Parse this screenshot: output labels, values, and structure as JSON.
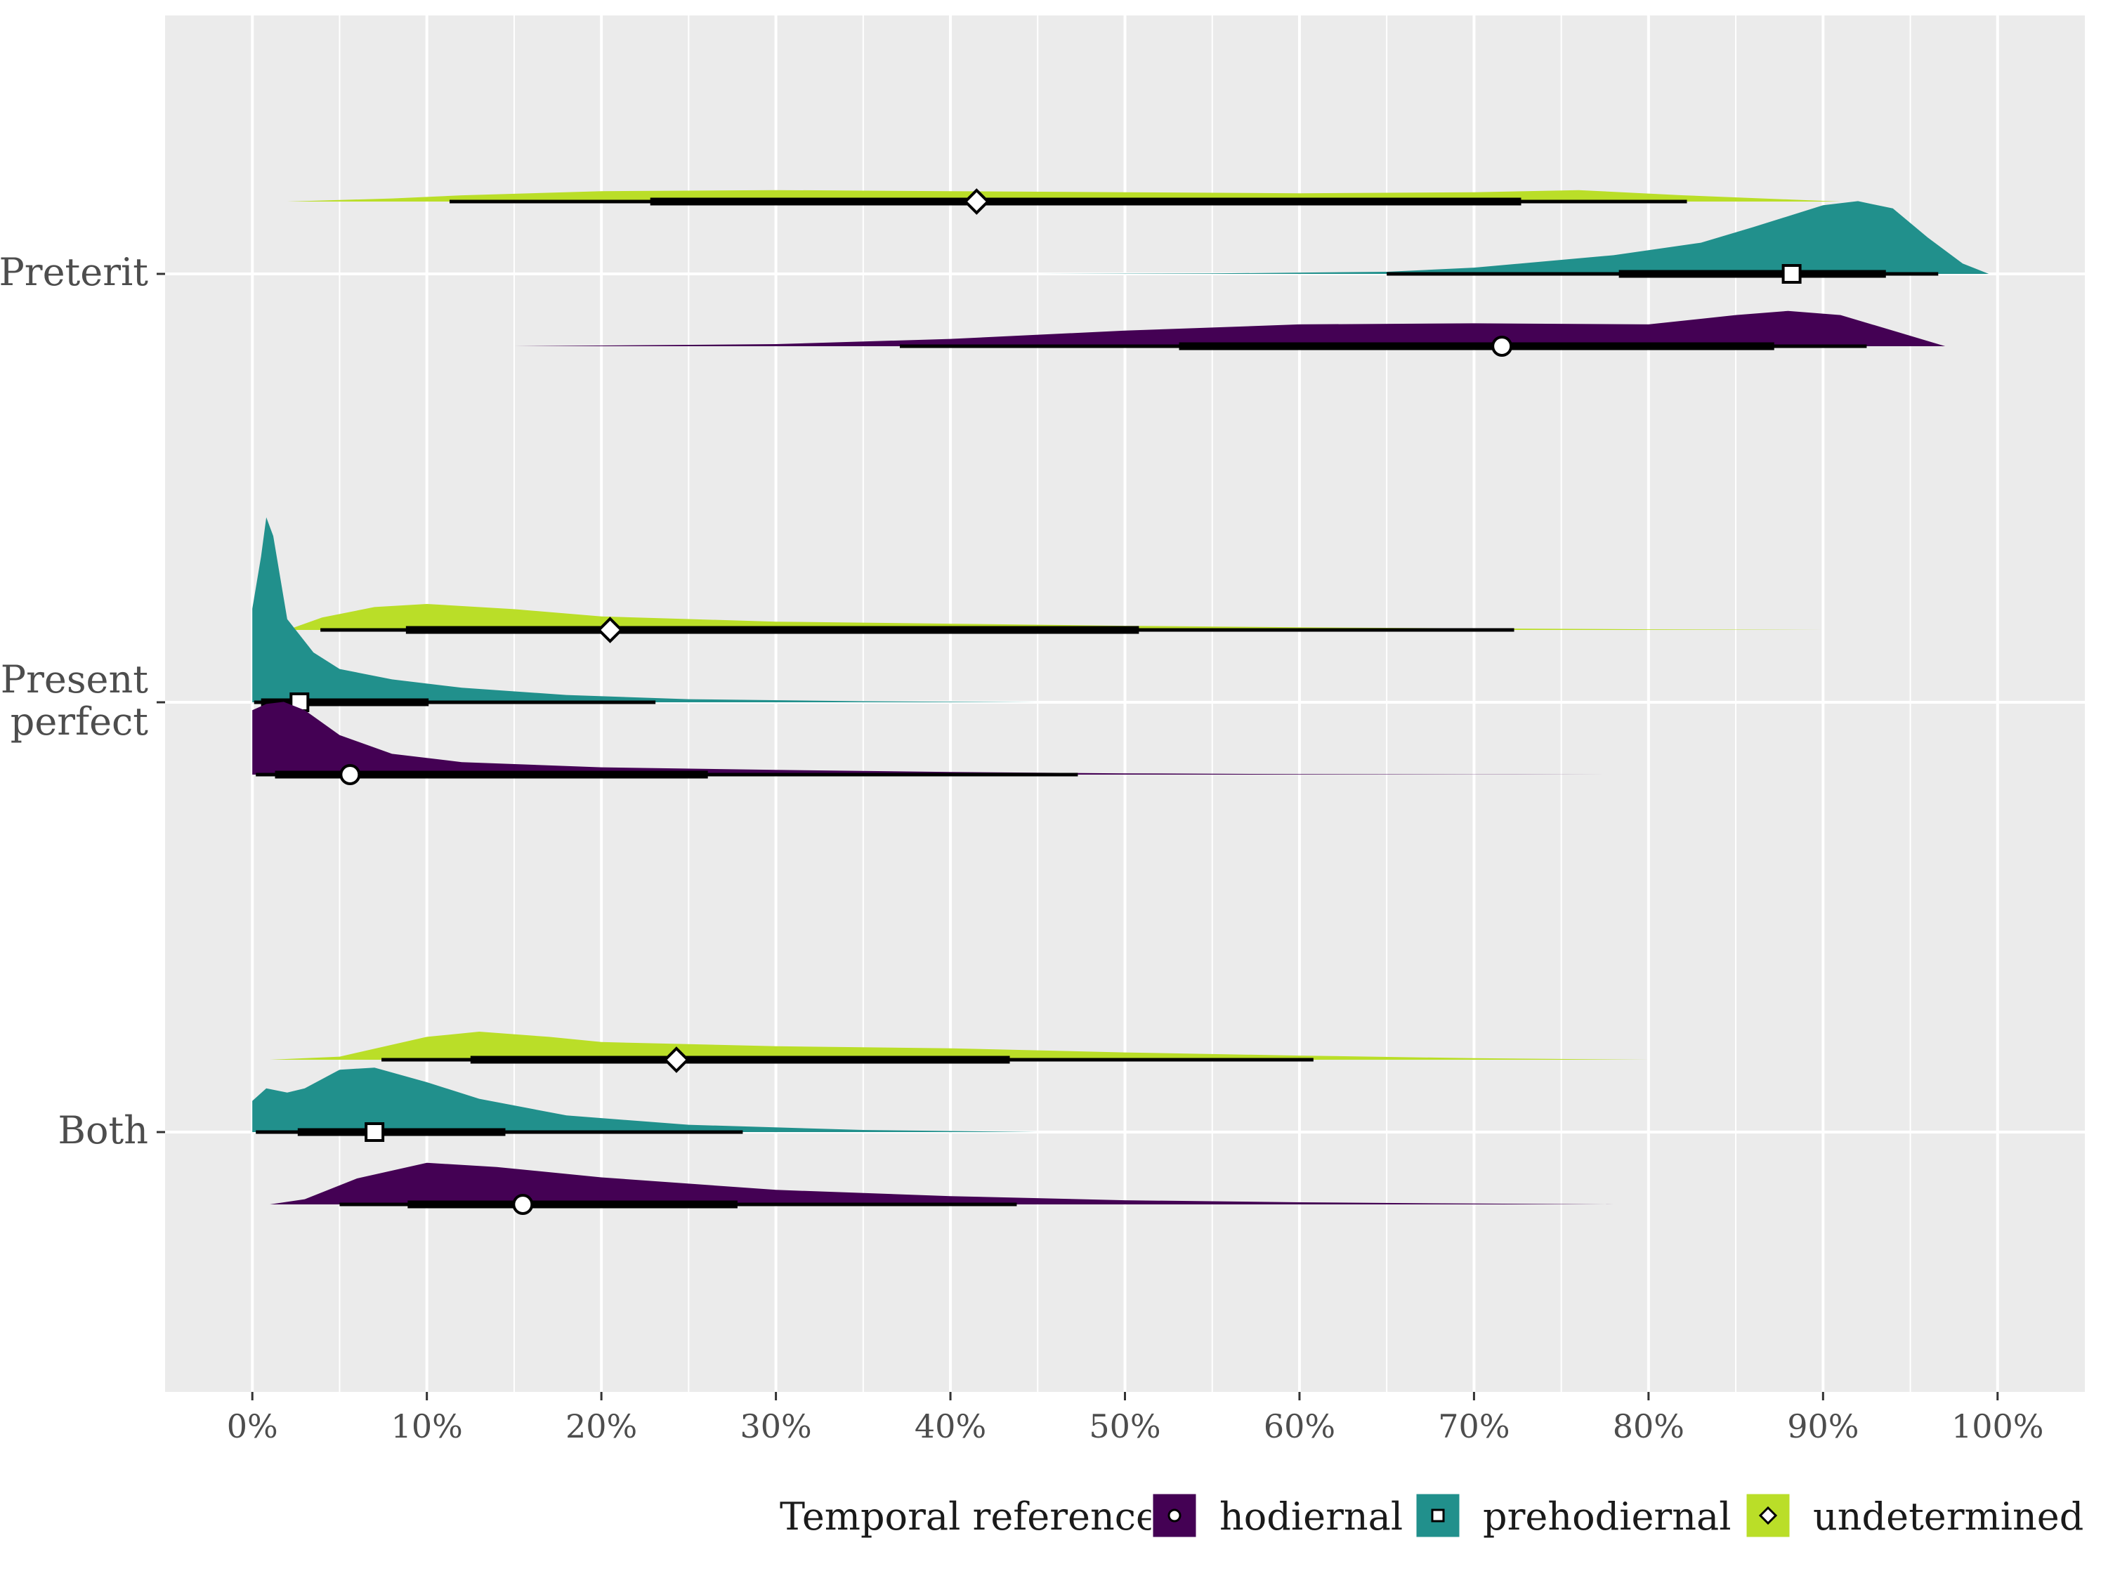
{
  "chart_data": {
    "type": "halfeye",
    "title": "",
    "xlabel": "",
    "ylabel": "",
    "x_axis": {
      "range": [
        -0.05,
        1.05
      ],
      "ticks": [
        0,
        0.1,
        0.2,
        0.3,
        0.4,
        0.5,
        0.6,
        0.7,
        0.8,
        0.9,
        1.0
      ],
      "tick_labels": [
        "0%",
        "10%",
        "20%",
        "30%",
        "40%",
        "50%",
        "60%",
        "70%",
        "80%",
        "90%",
        "100%"
      ]
    },
    "categories": [
      {
        "label_lines": [
          "Preterit"
        ]
      },
      {
        "label_lines": [
          "Present",
          "perfect"
        ]
      },
      {
        "label_lines": [
          "Both"
        ]
      }
    ],
    "grid": true,
    "legend": {
      "title": "Temporal reference",
      "position": "bottom-right",
      "entries": [
        {
          "label": "hodiernal",
          "color": "#440154",
          "shape": "circle"
        },
        {
          "label": "prehodiernal",
          "color": "#21908C",
          "shape": "square"
        },
        {
          "label": "undetermined",
          "color": "#BADE28",
          "shape": "diamond"
        }
      ]
    },
    "series": [
      {
        "name": "undetermined",
        "category": 0,
        "color": "#BADE28",
        "shape": "diamond",
        "point": 0.415,
        "interval_66": [
          0.228,
          0.727
        ],
        "interval_95": [
          0.113,
          0.822
        ],
        "density": [
          [
            0.02,
            0
          ],
          [
            0.08,
            0.03
          ],
          [
            0.12,
            0.06
          ],
          [
            0.2,
            0.1
          ],
          [
            0.3,
            0.11
          ],
          [
            0.4,
            0.1
          ],
          [
            0.5,
            0.09
          ],
          [
            0.6,
            0.08
          ],
          [
            0.7,
            0.09
          ],
          [
            0.76,
            0.11
          ],
          [
            0.82,
            0.06
          ],
          [
            0.88,
            0.02
          ],
          [
            0.91,
            0
          ]
        ]
      },
      {
        "name": "prehodiernal",
        "category": 0,
        "color": "#21908C",
        "shape": "square",
        "point": 0.882,
        "interval_66": [
          0.783,
          0.936
        ],
        "interval_95": [
          0.65,
          0.966
        ],
        "density": [
          [
            0.45,
            0
          ],
          [
            0.55,
            0.005
          ],
          [
            0.65,
            0.02
          ],
          [
            0.7,
            0.06
          ],
          [
            0.78,
            0.18
          ],
          [
            0.83,
            0.3
          ],
          [
            0.86,
            0.45
          ],
          [
            0.9,
            0.66
          ],
          [
            0.92,
            0.7
          ],
          [
            0.94,
            0.63
          ],
          [
            0.96,
            0.35
          ],
          [
            0.98,
            0.1
          ],
          [
            0.995,
            0
          ]
        ]
      },
      {
        "name": "hodiernal",
        "category": 0,
        "color": "#440154",
        "shape": "circle",
        "point": 0.716,
        "interval_66": [
          0.531,
          0.872
        ],
        "interval_95": [
          0.371,
          0.925
        ],
        "density": [
          [
            0.15,
            0
          ],
          [
            0.3,
            0.02
          ],
          [
            0.4,
            0.07
          ],
          [
            0.5,
            0.15
          ],
          [
            0.6,
            0.21
          ],
          [
            0.7,
            0.22
          ],
          [
            0.8,
            0.21
          ],
          [
            0.85,
            0.3
          ],
          [
            0.88,
            0.34
          ],
          [
            0.91,
            0.3
          ],
          [
            0.94,
            0.15
          ],
          [
            0.97,
            0
          ]
        ]
      },
      {
        "name": "undetermined",
        "category": 1,
        "color": "#BADE28",
        "shape": "diamond",
        "point": 0.205,
        "interval_66": [
          0.088,
          0.508
        ],
        "interval_95": [
          0.039,
          0.723
        ],
        "density": [
          [
            0.02,
            0
          ],
          [
            0.04,
            0.12
          ],
          [
            0.07,
            0.22
          ],
          [
            0.1,
            0.25
          ],
          [
            0.15,
            0.2
          ],
          [
            0.2,
            0.13
          ],
          [
            0.3,
            0.08
          ],
          [
            0.4,
            0.06
          ],
          [
            0.5,
            0.04
          ],
          [
            0.6,
            0.025
          ],
          [
            0.7,
            0.015
          ],
          [
            0.8,
            0.006
          ],
          [
            0.9,
            0
          ]
        ]
      },
      {
        "name": "prehodiernal",
        "category": 1,
        "color": "#21908C",
        "shape": "square",
        "point": 0.027,
        "interval_66": [
          0.005,
          0.101
        ],
        "interval_95": [
          0.001,
          0.231
        ],
        "density": [
          [
            0,
            0.9
          ],
          [
            0.005,
            1.4
          ],
          [
            0.008,
            1.78
          ],
          [
            0.012,
            1.6
          ],
          [
            0.02,
            0.8
          ],
          [
            0.035,
            0.48
          ],
          [
            0.05,
            0.32
          ],
          [
            0.08,
            0.22
          ],
          [
            0.12,
            0.14
          ],
          [
            0.18,
            0.07
          ],
          [
            0.25,
            0.03
          ],
          [
            0.35,
            0.01
          ],
          [
            0.45,
            0
          ]
        ]
      },
      {
        "name": "hodiernal",
        "category": 1,
        "color": "#440154",
        "shape": "circle",
        "point": 0.056,
        "interval_66": [
          0.013,
          0.261
        ],
        "interval_95": [
          0.002,
          0.473
        ],
        "density": [
          [
            0,
            0.62
          ],
          [
            0.008,
            0.68
          ],
          [
            0.018,
            0.7
          ],
          [
            0.03,
            0.62
          ],
          [
            0.05,
            0.38
          ],
          [
            0.08,
            0.2
          ],
          [
            0.12,
            0.12
          ],
          [
            0.2,
            0.07
          ],
          [
            0.3,
            0.045
          ],
          [
            0.4,
            0.025
          ],
          [
            0.5,
            0.012
          ],
          [
            0.6,
            0.005
          ],
          [
            0.7,
            0.002
          ],
          [
            0.78,
            0
          ]
        ]
      },
      {
        "name": "undetermined",
        "category": 2,
        "color": "#BADE28",
        "shape": "diamond",
        "point": 0.243,
        "interval_66": [
          0.125,
          0.434
        ],
        "interval_95": [
          0.074,
          0.608
        ],
        "density": [
          [
            0.01,
            0
          ],
          [
            0.05,
            0.03
          ],
          [
            0.1,
            0.22
          ],
          [
            0.13,
            0.27
          ],
          [
            0.17,
            0.22
          ],
          [
            0.2,
            0.17
          ],
          [
            0.3,
            0.13
          ],
          [
            0.4,
            0.11
          ],
          [
            0.5,
            0.07
          ],
          [
            0.6,
            0.04
          ],
          [
            0.7,
            0.015
          ],
          [
            0.8,
            0
          ]
        ]
      },
      {
        "name": "prehodiernal",
        "category": 2,
        "color": "#21908C",
        "shape": "square",
        "point": 0.07,
        "interval_66": [
          0.026,
          0.145
        ],
        "interval_95": [
          0.002,
          0.281
        ],
        "density": [
          [
            0,
            0.3
          ],
          [
            0.008,
            0.42
          ],
          [
            0.02,
            0.38
          ],
          [
            0.03,
            0.42
          ],
          [
            0.05,
            0.6
          ],
          [
            0.07,
            0.62
          ],
          [
            0.1,
            0.48
          ],
          [
            0.13,
            0.32
          ],
          [
            0.18,
            0.16
          ],
          [
            0.25,
            0.07
          ],
          [
            0.35,
            0.02
          ],
          [
            0.45,
            0
          ]
        ]
      },
      {
        "name": "hodiernal",
        "category": 2,
        "color": "#440154",
        "shape": "circle",
        "point": 0.155,
        "interval_66": [
          0.089,
          0.278
        ],
        "interval_95": [
          0.05,
          0.438
        ],
        "density": [
          [
            0.01,
            0
          ],
          [
            0.03,
            0.05
          ],
          [
            0.06,
            0.25
          ],
          [
            0.1,
            0.4
          ],
          [
            0.14,
            0.36
          ],
          [
            0.2,
            0.26
          ],
          [
            0.3,
            0.14
          ],
          [
            0.4,
            0.08
          ],
          [
            0.5,
            0.04
          ],
          [
            0.6,
            0.02
          ],
          [
            0.7,
            0.008
          ],
          [
            0.78,
            0
          ]
        ]
      }
    ]
  }
}
